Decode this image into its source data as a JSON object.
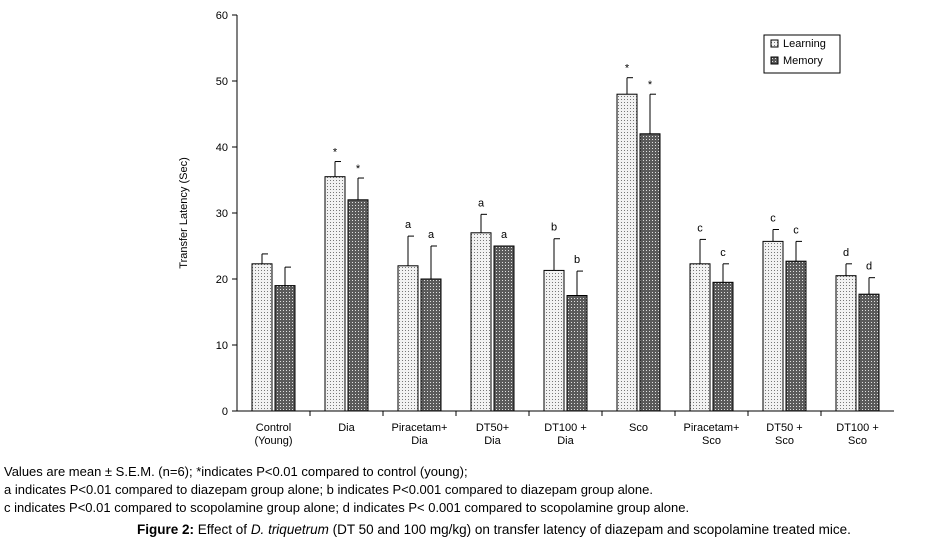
{
  "chart_data": {
    "type": "bar",
    "title": "",
    "xlabel": "",
    "ylabel": "Transfer Latency  (Sec)",
    "ylim": [
      0,
      60
    ],
    "yticks": [
      0,
      10,
      20,
      30,
      40,
      50,
      60
    ],
    "grid": false,
    "legend_position": "top-right",
    "categories": [
      [
        "Control",
        "(Young)"
      ],
      [
        "Dia"
      ],
      [
        "Piracetam+",
        "Dia"
      ],
      [
        "DT50+",
        "Dia"
      ],
      [
        "DT100 +",
        "Dia"
      ],
      [
        "Sco"
      ],
      [
        "Piracetam+",
        "Sco"
      ],
      [
        "DT50 +",
        "Sco"
      ],
      [
        "DT100 +",
        "Sco"
      ]
    ],
    "series": [
      {
        "name": "Learning",
        "color": "#e8e8e8",
        "values": [
          22.3,
          35.5,
          22.0,
          27.0,
          21.3,
          48.0,
          22.3,
          25.7,
          20.5
        ],
        "errors": [
          1.5,
          2.3,
          4.5,
          2.8,
          4.8,
          2.5,
          3.7,
          1.8,
          1.8
        ],
        "annotations": [
          "",
          "*",
          "a",
          "a",
          "b",
          "*",
          "c",
          "c",
          "d"
        ]
      },
      {
        "name": "Memory",
        "color": "#4a4a4a",
        "values": [
          19.0,
          32.0,
          20.0,
          25.0,
          17.5,
          42.0,
          19.5,
          22.7,
          17.7
        ],
        "errors": [
          2.8,
          3.3,
          5.0,
          0.0,
          3.7,
          6.0,
          2.8,
          3.0,
          2.5
        ],
        "annotations": [
          "",
          "*",
          "a",
          "a",
          "b",
          "*",
          "c",
          "c",
          "d"
        ]
      }
    ]
  },
  "notes": [
    "Values are mean ± S.E.M. (n=6); *indicates P<0.01 compared to control (young);",
    "a indicates P<0.01 compared to diazepam group alone; b indicates P<0.001 compared to diazepam group alone.",
    "c indicates P<0.01 compared to scopolamine group alone;  d indicates P< 0.001 compared to scopolamine group alone."
  ],
  "caption": {
    "label": "Figure 2:",
    "text_before": " Effect of ",
    "species": "D. triquetrum",
    "text_after": " (DT 50 and 100 mg/kg) on transfer latency of diazepam and scopolamine treated mice."
  }
}
